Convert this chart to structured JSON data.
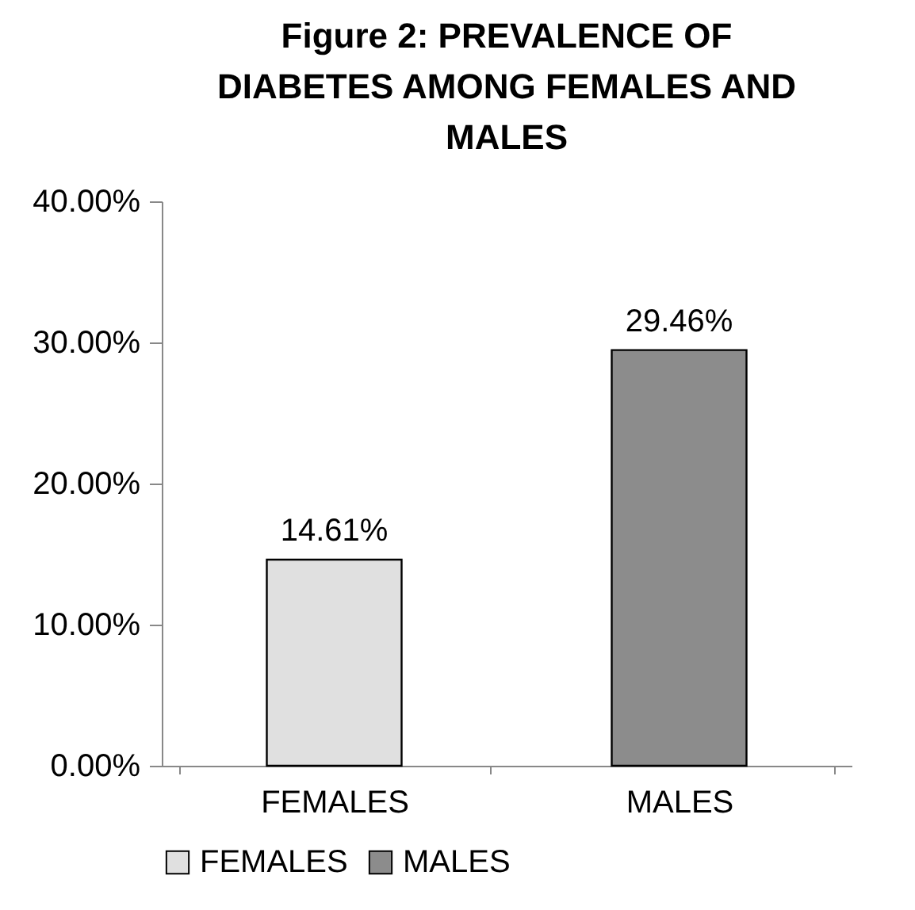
{
  "chart_data": {
    "type": "bar",
    "title": "Figure 2: PREVALENCE OF DIABETES AMONG FEMALES AND MALES",
    "categories": [
      "FEMALES",
      "MALES"
    ],
    "stacked": true,
    "series": [
      {
        "name": "FEMALES",
        "color": "#e0e0e0",
        "values": [
          14.61,
          null
        ],
        "value_labels": [
          "14.61%",
          null
        ]
      },
      {
        "name": "MALES",
        "color": "#8c8c8c",
        "values": [
          null,
          29.46
        ],
        "value_labels": [
          null,
          "29.46%"
        ]
      }
    ],
    "ylim": [
      0,
      40
    ],
    "yticks": [
      {
        "value": 0,
        "label": "0.00%"
      },
      {
        "value": 10,
        "label": "10.00%"
      },
      {
        "value": 20,
        "label": "20.00%"
      },
      {
        "value": 30,
        "label": "30.00%"
      },
      {
        "value": 40,
        "label": "40.00%"
      }
    ],
    "grid": false,
    "legend": "bottom"
  }
}
